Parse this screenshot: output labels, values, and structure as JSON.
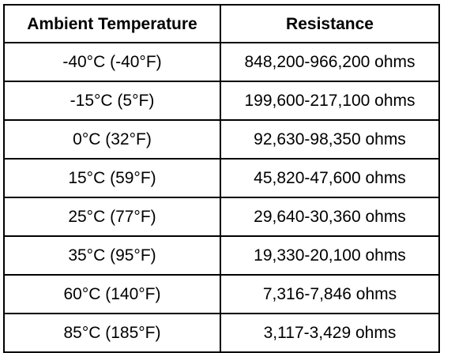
{
  "table": {
    "headers": [
      "Ambient Temperature",
      "Resistance"
    ],
    "rows": [
      [
        "-40°C (-40°F)",
        "848,200-966,200 ohms"
      ],
      [
        "-15°C (5°F)",
        "199,600-217,100 ohms"
      ],
      [
        "0°C (32°F)",
        "92,630-98,350 ohms"
      ],
      [
        "15°C (59°F)",
        "45,820-47,600 ohms"
      ],
      [
        "25°C (77°F)",
        "29,640-30,360 ohms"
      ],
      [
        "35°C (95°F)",
        "19,330-20,100 ohms"
      ],
      [
        "60°C (140°F)",
        "7,316-7,846 ohms"
      ],
      [
        "85°C (185°F)",
        "3,117-3,429 ohms"
      ]
    ]
  }
}
